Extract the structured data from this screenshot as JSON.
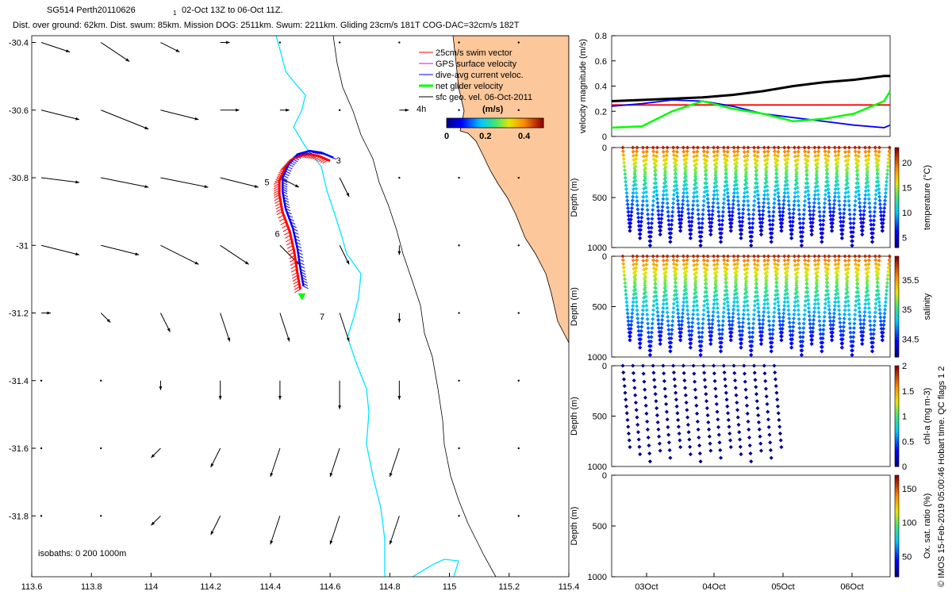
{
  "title": {
    "line1_a": "SG514 Perth20110626",
    "line1_sub": "1",
    "line1_b": "02-Oct 13Z to 06-Oct 11Z.",
    "line2": "Dist. over ground: 62km. Dist. swum: 85km. Mission DOG: 2511km. Swum: 2211km. Gliding 23cm/s 181T COG-DAC=32cm/s 182T"
  },
  "watermark": "© IMOS 15-Feb-2019 05:00:46 Hobart time. QC flags 1  2",
  "colors": {
    "land": "#fcc79a",
    "coast": "#00e5ff",
    "swim": "#ff0000",
    "gps": "#e000e0",
    "dac": "#0000ff",
    "net": "#00ff00",
    "sfc": "#000000"
  },
  "chart_data": [
    {
      "type": "map",
      "xlim": [
        113.6,
        115.4
      ],
      "ylim": [
        -31.98,
        -30.38
      ],
      "xticks": [
        "113.6",
        "113.8",
        "114",
        "114.2",
        "114.4",
        "114.6",
        "114.8",
        "115",
        "115.2",
        "115.4"
      ],
      "yticks": [
        "-30.4",
        "-30.6",
        "-30.8",
        "-31",
        "-31.2",
        "-31.4",
        "-31.6",
        "-31.8"
      ],
      "legend": {
        "placement": "top-right",
        "items": [
          {
            "label": "25cm/s swim vector",
            "color": "#ff0000"
          },
          {
            "label": "GPS surface velocity",
            "color": "#e000e0"
          },
          {
            "label": "dive-avg current veloc.",
            "color": "#0000ff"
          },
          {
            "label": "net glider velocity",
            "color": "#00ff00"
          },
          {
            "label": "sfc geo. vel. 06-Oct-2011",
            "color": "#000000"
          }
        ],
        "scale_label": "4h"
      },
      "colorbar": {
        "title": "(m/s)",
        "ticks": [
          "0",
          "0.2",
          "0.4"
        ],
        "range": [
          0,
          0.5
        ]
      },
      "isobath_label": "isobaths: 0   200  1000m",
      "day_labels": [
        {
          "text": "3",
          "lon": 114.62,
          "lat": -30.758
        },
        {
          "text": "5",
          "lon": 114.38,
          "lat": -30.822
        },
        {
          "text": "6",
          "lon": 114.415,
          "lat": -30.975
        },
        {
          "text": "7",
          "lon": 114.565,
          "lat": -31.22
        }
      ],
      "glider_track": [
        [
          114.5,
          -31.13
        ],
        [
          114.49,
          -31.08
        ],
        [
          114.48,
          -31.02
        ],
        [
          114.465,
          -30.96
        ],
        [
          114.44,
          -30.9
        ],
        [
          114.43,
          -30.85
        ],
        [
          114.43,
          -30.81
        ],
        [
          114.45,
          -30.77
        ],
        [
          114.48,
          -30.74
        ],
        [
          114.52,
          -30.73
        ],
        [
          114.56,
          -30.735
        ],
        [
          114.6,
          -30.75
        ]
      ],
      "current_vectors_uv": [
        {
          "lat": -30.4,
          "u": [
            0.3,
            0.3,
            0.2,
            0.1,
            0,
            0,
            0,
            0,
            0,
            0
          ],
          "v": [
            -0.1,
            -0.2,
            -0.1,
            0,
            0,
            0,
            0,
            0,
            0,
            0
          ]
        },
        {
          "lat": -30.6,
          "u": [
            0.4,
            0.5,
            0.4,
            0.2,
            0.1,
            0,
            0.1,
            0,
            0,
            0
          ],
          "v": [
            -0.1,
            -0.2,
            -0.1,
            0,
            0,
            0,
            0,
            0,
            0,
            0
          ]
        },
        {
          "lat": -30.8,
          "u": [
            0.4,
            0.5,
            0.5,
            0.4,
            0.2,
            0.1,
            0,
            0,
            0,
            0
          ],
          "v": [
            -0.05,
            -0.1,
            -0.1,
            -0.1,
            -0.1,
            -0.2,
            0,
            0,
            0,
            0
          ]
        },
        {
          "lat": -31.0,
          "u": [
            0.4,
            0.4,
            0.4,
            0.3,
            0.2,
            0.1,
            0,
            0,
            0,
            0
          ],
          "v": [
            -0.1,
            -0.1,
            -0.2,
            -0.2,
            -0.2,
            -0.2,
            -0.1,
            0,
            0,
            0
          ]
        },
        {
          "lat": -31.2,
          "u": [
            0.1,
            0.1,
            0.1,
            0.1,
            0.1,
            0.1,
            0,
            0,
            0,
            0
          ],
          "v": [
            0,
            -0.1,
            -0.2,
            -0.3,
            -0.3,
            -0.3,
            -0.1,
            0,
            0,
            0
          ]
        },
        {
          "lat": -31.4,
          "u": [
            0,
            0,
            0,
            0,
            0,
            0,
            0,
            0,
            0,
            0
          ],
          "v": [
            0,
            0,
            -0.1,
            -0.2,
            -0.2,
            -0.3,
            -0.2,
            0,
            0,
            0
          ]
        },
        {
          "lat": -31.6,
          "u": [
            0,
            0,
            -0.1,
            -0.1,
            -0.1,
            -0.1,
            -0.1,
            0,
            0,
            0
          ],
          "v": [
            0,
            0,
            -0.1,
            -0.2,
            -0.3,
            -0.3,
            -0.3,
            0,
            0,
            0
          ]
        },
        {
          "lat": -31.8,
          "u": [
            0,
            0,
            -0.1,
            -0.1,
            -0.1,
            -0.1,
            -0.1,
            0,
            0,
            0
          ],
          "v": [
            0,
            0,
            -0.1,
            -0.2,
            -0.3,
            -0.3,
            -0.3,
            0,
            0,
            0
          ]
        }
      ]
    },
    {
      "type": "line",
      "ylabel": "velocity magnitude (m/s)",
      "ylim": [
        0,
        0.8
      ],
      "yticks": [
        "0",
        "0.2",
        "0.4",
        "0.6",
        "0.8"
      ],
      "xlim": [
        0,
        4.6
      ],
      "series": [
        {
          "color": "#000000",
          "x": [
            0,
            0.5,
            1,
            1.5,
            2,
            2.5,
            3,
            3.5,
            4,
            4.5,
            4.6
          ],
          "values": [
            0.28,
            0.29,
            0.3,
            0.31,
            0.33,
            0.36,
            0.4,
            0.43,
            0.45,
            0.48,
            0.48
          ]
        },
        {
          "color": "#ff0000",
          "x": [
            0,
            4.6
          ],
          "values": [
            0.25,
            0.25
          ]
        },
        {
          "color": "#0000ff",
          "x": [
            0,
            0.5,
            1,
            1.5,
            2,
            2.5,
            3,
            3.5,
            4,
            4.5,
            4.6
          ],
          "values": [
            0.24,
            0.26,
            0.29,
            0.28,
            0.24,
            0.18,
            0.15,
            0.12,
            0.09,
            0.07,
            0.09
          ]
        },
        {
          "color": "#00ff00",
          "x": [
            0,
            0.5,
            1,
            1.5,
            2,
            2.5,
            3,
            3.5,
            4,
            4.5,
            4.6
          ],
          "values": [
            0.07,
            0.08,
            0.2,
            0.28,
            0.22,
            0.18,
            0.12,
            0.14,
            0.18,
            0.28,
            0.36
          ]
        }
      ]
    },
    {
      "type": "scatter",
      "ylabel": "Depth (m)",
      "ylim": [
        0,
        1000
      ],
      "yticks": [
        "0",
        "500",
        "1000"
      ],
      "colorbar_label": "temperature (°C)",
      "colorbar_range": [
        3,
        23
      ],
      "colorbar_ticks": [
        "5",
        "10",
        "15",
        "20"
      ],
      "dives": 26,
      "surface_value": 22,
      "deep_value": 4,
      "max_depth": 980
    },
    {
      "type": "scatter",
      "ylabel": "Depth (m)",
      "ylim": [
        0,
        1000
      ],
      "yticks": [
        "0",
        "500",
        "1000"
      ],
      "colorbar_label": "salinity",
      "colorbar_range": [
        34.2,
        35.9
      ],
      "colorbar_ticks": [
        "34.5",
        "35",
        "35.5"
      ],
      "dives": 26,
      "surface_value": 35.8,
      "deep_value": 34.4,
      "max_depth": 980
    },
    {
      "type": "scatter",
      "ylabel": "Depth (m)",
      "ylim": [
        0,
        1000
      ],
      "yticks": [
        "0",
        "500",
        "1000"
      ],
      "colorbar_label": "chl-a (mg m-3)",
      "colorbar_range": [
        0,
        2
      ],
      "colorbar_ticks": [
        "0",
        "0.5",
        "1",
        "1.5",
        "2"
      ],
      "dives": 16,
      "surface_value": 0.3,
      "deep_value": 0.0,
      "max_depth": 950
    },
    {
      "type": "scatter",
      "ylabel": "Depth (m)",
      "ylim": [
        0,
        1000
      ],
      "yticks": [
        "0",
        "500",
        "1000"
      ],
      "colorbar_label": "Ox. sat. ratio (%)",
      "colorbar_range": [
        20,
        170
      ],
      "colorbar_ticks": [
        "50",
        "100",
        "150"
      ],
      "xticks": [
        "03Oct",
        "04Oct",
        "05Oct",
        "06Oct"
      ],
      "dives": 0
    }
  ]
}
